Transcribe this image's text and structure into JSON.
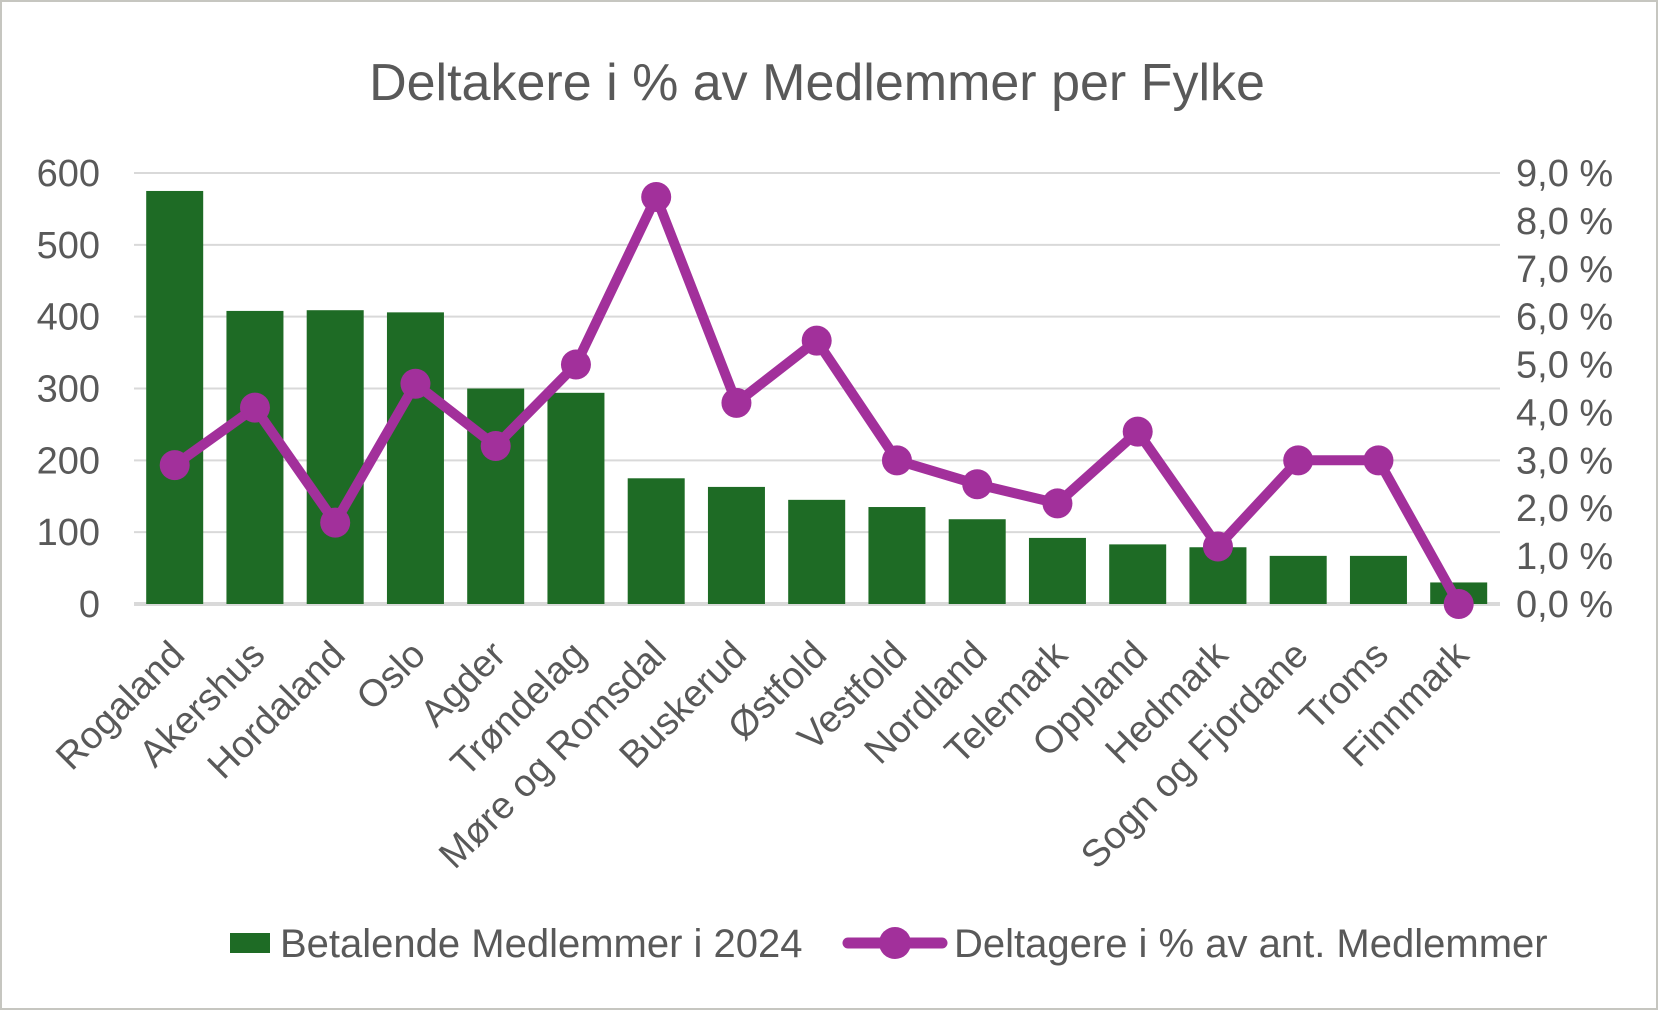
{
  "frame": {
    "background": "#FFFFFF",
    "border_color": "#C6C6C0"
  },
  "chart_data": {
    "type": "combo-bar-line",
    "title": "Deltakere i % av Medlemmer per Fylke",
    "text_color": "#595959",
    "gridline_color": "#D9D9D9",
    "grid": true,
    "legend_position": "bottom",
    "categories": [
      "Rogaland",
      "Akershus",
      "Hordaland",
      "Oslo",
      "Agder",
      "Trøndelag",
      "Møre og Romsdal",
      "Buskerud",
      "Østfold",
      "Vestfold",
      "Nordland",
      "Telemark",
      "Oppland",
      "Hedmark",
      "Sogn og Fjordane",
      "Troms",
      "Finnmark"
    ],
    "series": [
      {
        "name": "Betalende Medlemmer i 2024",
        "type": "bar",
        "axis": "left",
        "color": "#1E6B25",
        "values": [
          575,
          408,
          409,
          406,
          300,
          294,
          175,
          163,
          145,
          135,
          118,
          92,
          83,
          79,
          67,
          67,
          30
        ]
      },
      {
        "name": "Deltagere i % av ant. Medlemmer",
        "type": "line",
        "axis": "right",
        "color": "#A2309B",
        "values": [
          2.9,
          4.1,
          1.7,
          4.6,
          3.3,
          5.0,
          8.5,
          4.2,
          5.5,
          3.0,
          2.5,
          2.1,
          3.6,
          1.2,
          3.0,
          3.0,
          0.0
        ]
      }
    ],
    "left_axis": {
      "min": 0,
      "max": 600,
      "step": 100,
      "labels": [
        "0",
        "100",
        "200",
        "300",
        "400",
        "500",
        "600"
      ]
    },
    "right_axis": {
      "min": 0,
      "max": 9,
      "step": 1,
      "labels": [
        "0,0 %",
        "1,0 %",
        "2,0 %",
        "3,0 %",
        "4,0 %",
        "5,0 %",
        "6,0 %",
        "7,0 %",
        "8,0 %",
        "9,0 %"
      ]
    }
  }
}
